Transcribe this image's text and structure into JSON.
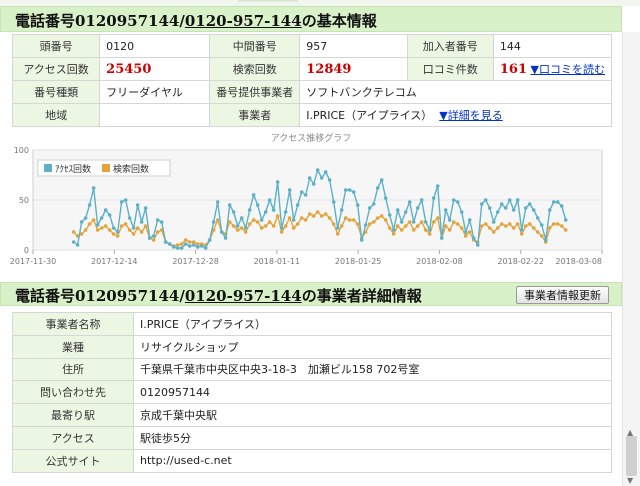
{
  "basic": {
    "title_prefix": "電話番号0120957144/",
    "title_link": "0120-957-144",
    "title_suffix": "の基本情報",
    "rows": {
      "head_label": "頭番号",
      "head_value": "0120",
      "mid_label": "中間番号",
      "mid_value": "957",
      "sub_label": "加入者番号",
      "sub_value": "144",
      "access_label": "アクセス回数",
      "access_value": "25450",
      "search_label": "検索回数",
      "search_value": "12849",
      "review_label": "口コミ件数",
      "review_value": "161",
      "review_link": "▼口コミを読む",
      "type_label": "番号種類",
      "type_value": "フリーダイヤル",
      "carrier_label": "番号提供事業者",
      "carrier_value": "ソフトバンクテレコム",
      "region_label": "地域",
      "region_value": "",
      "biz_label": "事業者",
      "biz_value": "I.PRICE（アイプライス）",
      "detail_link": "▼詳細を見る"
    }
  },
  "chart_data": {
    "type": "line",
    "title": "アクセス推移グラフ",
    "legend": [
      "ｱｸｾｽ回数",
      "検索回数"
    ],
    "colors": [
      "#5cb1c8",
      "#e3a43c"
    ],
    "ylim": [
      0,
      100
    ],
    "yticks": [
      "0",
      "50",
      "100"
    ],
    "xticks": [
      "2017-11-30",
      "2017-12-14",
      "2017-12-28",
      "2018-01-11",
      "2018-01-25",
      "2018-02-08",
      "2018-02-22",
      "2018-03-08"
    ],
    "x_start_day": 0,
    "x_span_days": 98,
    "series": [
      {
        "name": "ｱｸｾｽ回数",
        "start_day": 7,
        "values": [
          8,
          5,
          28,
          32,
          45,
          62,
          25,
          32,
          40,
          35,
          22,
          18,
          48,
          50,
          32,
          22,
          45,
          28,
          42,
          12,
          14,
          30,
          28,
          8,
          6,
          3,
          2,
          2,
          6,
          4,
          5,
          3,
          4,
          2,
          10,
          28,
          48,
          18,
          12,
          45,
          38,
          24,
          32,
          22,
          40,
          55,
          45,
          30,
          38,
          50,
          40,
          68,
          22,
          38,
          60,
          30,
          45,
          58,
          55,
          72,
          66,
          80,
          72,
          78,
          70,
          48,
          22,
          40,
          60,
          60,
          58,
          45,
          10,
          25,
          42,
          46,
          62,
          70,
          52,
          35,
          20,
          40,
          28,
          38,
          48,
          28,
          42,
          50,
          28,
          20,
          52,
          64,
          12,
          40,
          30,
          50,
          48,
          38,
          18,
          30,
          12,
          5,
          46,
          50,
          42,
          28,
          38,
          46,
          42,
          50,
          40,
          50,
          20,
          42,
          46,
          40,
          32,
          25,
          10,
          40,
          48,
          48,
          44,
          30
        ]
      },
      {
        "name": "検索回数",
        "start_day": 7,
        "values": [
          18,
          14,
          16,
          20,
          26,
          30,
          20,
          22,
          24,
          20,
          16,
          14,
          24,
          26,
          20,
          16,
          22,
          18,
          24,
          12,
          10,
          18,
          20,
          8,
          6,
          4,
          5,
          6,
          10,
          8,
          8,
          6,
          6,
          5,
          10,
          20,
          30,
          18,
          16,
          28,
          24,
          20,
          22,
          18,
          26,
          30,
          28,
          22,
          24,
          28,
          24,
          34,
          18,
          24,
          32,
          22,
          26,
          32,
          30,
          36,
          34,
          38,
          34,
          36,
          32,
          26,
          16,
          24,
          32,
          30,
          30,
          26,
          12,
          18,
          26,
          28,
          32,
          34,
          30,
          22,
          16,
          24,
          20,
          24,
          28,
          20,
          24,
          28,
          20,
          16,
          28,
          32,
          12,
          24,
          20,
          28,
          26,
          22,
          14,
          18,
          10,
          8,
          24,
          26,
          22,
          18,
          22,
          26,
          24,
          26,
          22,
          26,
          16,
          24,
          26,
          22,
          18,
          14,
          8,
          22,
          26,
          26,
          24,
          20
        ]
      }
    ]
  },
  "detail": {
    "title_prefix": "電話番号0120957144/",
    "title_link": "0120-957-144",
    "title_suffix": "の事業者詳細情報",
    "refresh_button": "事業者情報更新",
    "rows": [
      {
        "label": "事業者名称",
        "value": "I.PRICE（アイプライス）"
      },
      {
        "label": "業種",
        "value": "リサイクルショップ"
      },
      {
        "label": "住所",
        "value": "千葉県千葉市中央区中央3-18-3　加瀬ビル158 702号室"
      },
      {
        "label": "問い合わせ先",
        "value": "0120957144"
      },
      {
        "label": "最寄り駅",
        "value": "京成千葉中央駅"
      },
      {
        "label": "アクセス",
        "value": "駅徒歩5分"
      },
      {
        "label": "公式サイト",
        "value": "http://used-c.net"
      }
    ]
  }
}
